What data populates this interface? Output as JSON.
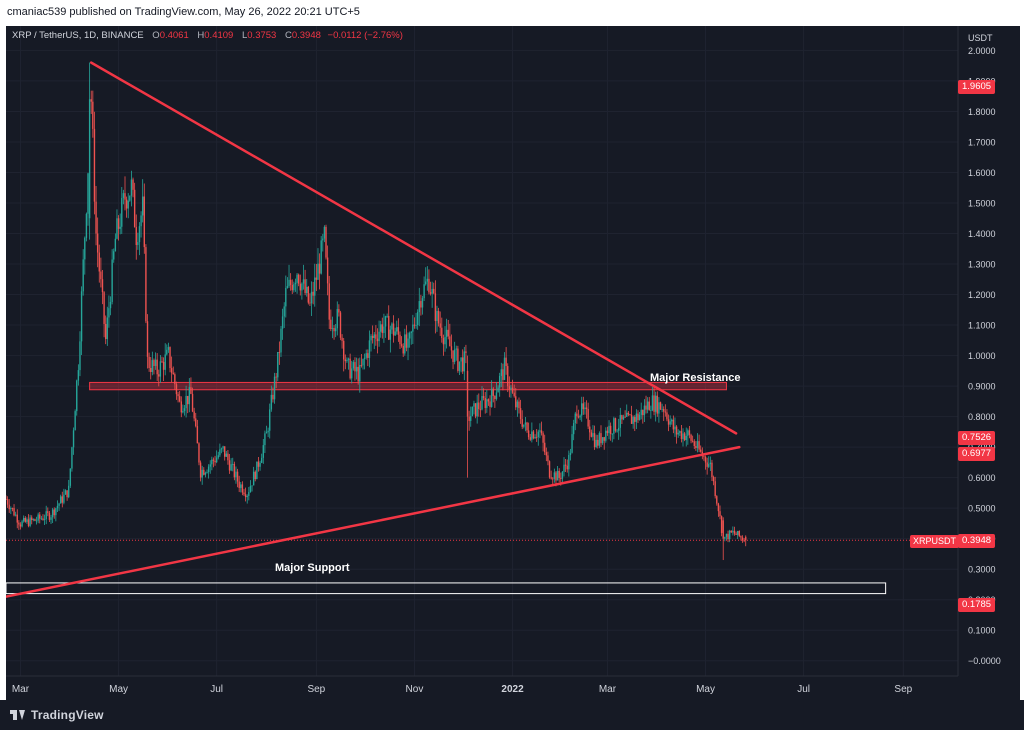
{
  "header": {
    "author_line": "cmaniac539 published on TradingView.com, May 26, 2022 20:21 UTC+5"
  },
  "legend": {
    "symbol": "XRP / TetherUS, 1D, BINANCE",
    "open_label": "O",
    "open": "0.4061",
    "high_label": "H",
    "high": "0.4109",
    "low_label": "L",
    "low": "0.3753",
    "close_label": "C",
    "close": "0.3948",
    "change": "−0.0112 (−2.76%)"
  },
  "axis": {
    "currency": "USDT",
    "y_ticks": [
      "2.0000",
      "1.9000",
      "1.8000",
      "1.7000",
      "1.6000",
      "1.5000",
      "1.4000",
      "1.3000",
      "1.2000",
      "1.1000",
      "1.0000",
      "0.9000",
      "0.8000",
      "0.7000",
      "0.6000",
      "0.5000",
      "0.4000",
      "0.3000",
      "0.2000",
      "0.1000",
      "−0.0000"
    ],
    "x_ticks": [
      "Mar",
      "May",
      "Jul",
      "Sep",
      "Nov",
      "2022",
      "Mar",
      "May",
      "Jul",
      "Sep"
    ]
  },
  "price_tags": {
    "high": "1.9605",
    "resistance_line": "0.7526",
    "support_line": "0.6977",
    "last_symbol": "XRPUSDT",
    "last": "0.3948",
    "bottom": "0.1785"
  },
  "annotations": {
    "resistance": "Major Resistance",
    "support": "Major Support"
  },
  "footer": {
    "brand": "TradingView"
  },
  "colors": {
    "background": "#161a25",
    "up": "#26a69a",
    "down": "#ef5350",
    "trendline": "#f23645",
    "support_zone": "#ffffff"
  },
  "chart_data": {
    "type": "candlestick",
    "symbol": "XRP / TetherUS",
    "interval": "1D",
    "ylim": [
      -0.05,
      2.08
    ],
    "x_range": [
      "2021-02-20",
      "2022-10-05"
    ],
    "close_path": [
      [
        "2021-02-20",
        0.53
      ],
      [
        "2021-03-01",
        0.45
      ],
      [
        "2021-03-10",
        0.46
      ],
      [
        "2021-03-20",
        0.48
      ],
      [
        "2021-03-31",
        0.56
      ],
      [
        "2021-04-06",
        0.98
      ],
      [
        "2021-04-10",
        1.4
      ],
      [
        "2021-04-14",
        1.84
      ],
      [
        "2021-04-17",
        1.4
      ],
      [
        "2021-04-23",
        1.05
      ],
      [
        "2021-04-29",
        1.38
      ],
      [
        "2021-05-05",
        1.52
      ],
      [
        "2021-05-09",
        1.55
      ],
      [
        "2021-05-12",
        1.4
      ],
      [
        "2021-05-16",
        1.48
      ],
      [
        "2021-05-19",
        0.98
      ],
      [
        "2021-05-25",
        0.95
      ],
      [
        "2021-06-01",
        1.0
      ],
      [
        "2021-06-08",
        0.84
      ],
      [
        "2021-06-15",
        0.87
      ],
      [
        "2021-06-21",
        0.62
      ],
      [
        "2021-06-26",
        0.64
      ],
      [
        "2021-07-05",
        0.69
      ],
      [
        "2021-07-15",
        0.58
      ],
      [
        "2021-07-20",
        0.55
      ],
      [
        "2021-07-26",
        0.63
      ],
      [
        "2021-08-01",
        0.74
      ],
      [
        "2021-08-08",
        0.98
      ],
      [
        "2021-08-13",
        1.2
      ],
      [
        "2021-08-20",
        1.28
      ],
      [
        "2021-08-28",
        1.16
      ],
      [
        "2021-09-06",
        1.38
      ],
      [
        "2021-09-09",
        1.12
      ],
      [
        "2021-09-15",
        1.12
      ],
      [
        "2021-09-20",
        0.96
      ],
      [
        "2021-09-28",
        0.94
      ],
      [
        "2021-10-05",
        1.05
      ],
      [
        "2021-10-12",
        1.1
      ],
      [
        "2021-10-20",
        1.08
      ],
      [
        "2021-10-28",
        1.02
      ],
      [
        "2021-11-05",
        1.2
      ],
      [
        "2021-11-10",
        1.25
      ],
      [
        "2021-11-15",
        1.12
      ],
      [
        "2021-11-22",
        1.04
      ],
      [
        "2021-11-28",
        0.98
      ],
      [
        "2021-12-03",
        0.98
      ],
      [
        "2021-12-05",
        0.8
      ],
      [
        "2021-12-10",
        0.83
      ],
      [
        "2021-12-20",
        0.87
      ],
      [
        "2021-12-27",
        0.96
      ],
      [
        "2022-01-02",
        0.85
      ],
      [
        "2022-01-10",
        0.75
      ],
      [
        "2022-01-18",
        0.75
      ],
      [
        "2022-01-24",
        0.62
      ],
      [
        "2022-01-30",
        0.6
      ],
      [
        "2022-02-05",
        0.66
      ],
      [
        "2022-02-10",
        0.83
      ],
      [
        "2022-02-16",
        0.8
      ],
      [
        "2022-02-22",
        0.71
      ],
      [
        "2022-03-01",
        0.76
      ],
      [
        "2022-03-10",
        0.78
      ],
      [
        "2022-03-20",
        0.8
      ],
      [
        "2022-03-28",
        0.85
      ],
      [
        "2022-04-05",
        0.83
      ],
      [
        "2022-04-12",
        0.75
      ],
      [
        "2022-04-20",
        0.74
      ],
      [
        "2022-04-28",
        0.68
      ],
      [
        "2022-05-04",
        0.64
      ],
      [
        "2022-05-09",
        0.5
      ],
      [
        "2022-05-12",
        0.4
      ],
      [
        "2022-05-18",
        0.42
      ],
      [
        "2022-05-26",
        0.3948
      ]
    ],
    "highlight_candles": [
      {
        "date": "2021-04-13",
        "open": 1.45,
        "high": 1.9605,
        "low": 1.38,
        "close": 1.84
      },
      {
        "date": "2021-12-04",
        "open": 0.95,
        "high": 1.0,
        "low": 0.6,
        "close": 0.8
      },
      {
        "date": "2022-05-12",
        "open": 0.46,
        "high": 0.47,
        "low": 0.33,
        "close": 0.4
      },
      {
        "date": "2022-05-26",
        "open": 0.4061,
        "high": 0.4109,
        "low": 0.3753,
        "close": 0.3948
      }
    ],
    "trendlines": [
      {
        "name": "resistance_trendline",
        "from": [
          "2021-04-14",
          1.96
        ],
        "to": [
          "2022-05-20",
          0.745
        ]
      },
      {
        "name": "support_trendline",
        "from": [
          "2021-02-20",
          0.21
        ],
        "to": [
          "2022-05-22",
          0.7
        ]
      }
    ],
    "zones": [
      {
        "name": "major_resistance_zone",
        "from": "2021-04-13",
        "to": "2022-05-14",
        "low": 0.888,
        "high": 0.912
      },
      {
        "name": "major_support_zone",
        "from": "2021-02-20",
        "to": "2022-08-21",
        "low": 0.22,
        "high": 0.255
      }
    ],
    "last_price": 0.3948
  }
}
